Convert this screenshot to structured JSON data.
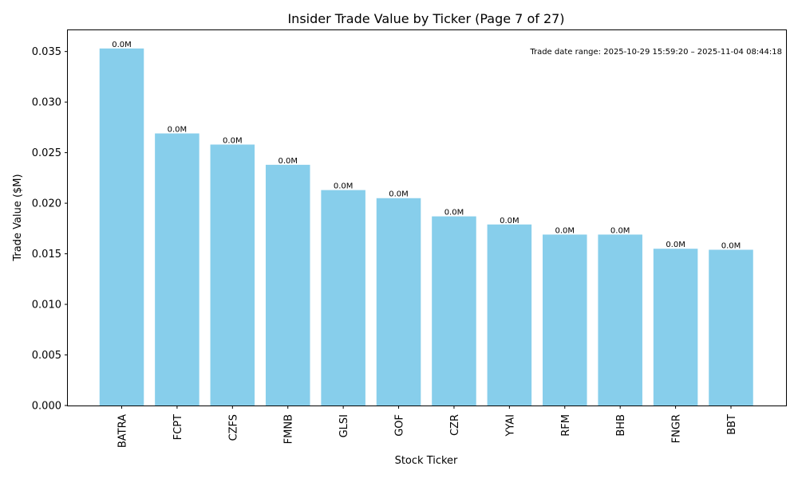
{
  "chart_data": {
    "type": "bar",
    "title": "Insider Trade Value by Ticker (Page 7 of 27)",
    "xlabel": "Stock Ticker",
    "ylabel": "Trade Value ($M)",
    "categories": [
      "BATRA",
      "FCPT",
      "CZFS",
      "FMNB",
      "GLSI",
      "GOF",
      "CZR",
      "YYAI",
      "RFM",
      "BHB",
      "FNGR",
      "BBT"
    ],
    "values": [
      0.0353,
      0.0269,
      0.0258,
      0.0238,
      0.0213,
      0.0205,
      0.0187,
      0.0179,
      0.0169,
      0.0169,
      0.0155,
      0.0154
    ],
    "data_labels": [
      "0.0M",
      "0.0M",
      "0.0M",
      "0.0M",
      "0.0M",
      "0.0M",
      "0.0M",
      "0.0M",
      "0.0M",
      "0.0M",
      "0.0M",
      "0.0M"
    ],
    "ylim": [
      0,
      0.0371
    ],
    "yticks": [
      0.0,
      0.005,
      0.01,
      0.015,
      0.02,
      0.025,
      0.03,
      0.035
    ],
    "ytick_labels": [
      "0.000",
      "0.005",
      "0.010",
      "0.015",
      "0.020",
      "0.025",
      "0.030",
      "0.035"
    ],
    "annotation": "Trade date range: 2025-10-29 15:59:20 – 2025-11-04 08:44:18",
    "bar_color": "#87ceeb",
    "grid": false,
    "legend": "none"
  }
}
